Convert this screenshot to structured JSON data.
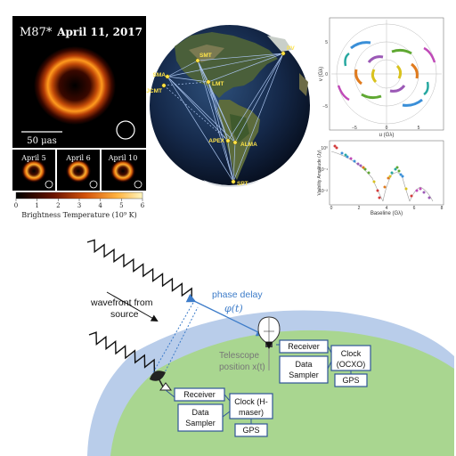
{
  "m87_panel": {
    "title_left": "M87*",
    "title_right": "April 11, 2017",
    "scale_label": "50 μas",
    "thumbnails": [
      {
        "label": "April 5"
      },
      {
        "label": "April 6"
      },
      {
        "label": "April 10"
      }
    ],
    "colorbar": {
      "ticks": [
        "0",
        "1",
        "2",
        "3",
        "4",
        "5",
        "6"
      ],
      "label": "Brightness Temperature (10⁹ K)"
    }
  },
  "globe": {
    "stations": [
      {
        "name": "SMT"
      },
      {
        "name": "PV"
      },
      {
        "name": "SMA"
      },
      {
        "name": "JCMT"
      },
      {
        "name": "LMT"
      },
      {
        "name": "APEX"
      },
      {
        "name": "ALMA"
      },
      {
        "name": "SPT"
      }
    ]
  },
  "uv_plot": {
    "xlabel": "u (Gλ)",
    "ylabel": "v (Gλ)",
    "xticks": [
      "5",
      "0",
      "−5"
    ],
    "yticks": [
      "5",
      "0",
      "−5"
    ]
  },
  "vis_plot": {
    "xlabel": "Baseline (Gλ)",
    "ylabel": "Visibility Amplitude (Jy)",
    "xticks": [
      "0",
      "2",
      "4",
      "6",
      "8"
    ],
    "yticks": [
      "10⁰",
      "10⁻¹",
      "10⁻²"
    ]
  },
  "diagram": {
    "wavefront_label_line1": "wavefront from",
    "wavefront_label_line2": "source",
    "phase_delay_label": "phase delay",
    "phase_delay_symbol": "φ(t)",
    "telescope_position_line1": "Telescope",
    "telescope_position_line2": "position x(t)",
    "right_station": {
      "receiver": "Receiver",
      "sampler_line1": "Data",
      "sampler_line2": "Sampler",
      "clock_line1": "Clock",
      "clock_line2": "(OCXO)",
      "gps": "GPS"
    },
    "left_station": {
      "receiver": "Receiver",
      "sampler_line1": "Data",
      "sampler_line2": "Sampler",
      "clock_line1": "Clock (H-",
      "clock_line2": "maser)",
      "gps": "GPS"
    },
    "colors": {
      "atmosphere": "#b9cdea",
      "ground": "#a9d690",
      "box_border": "#2f5597",
      "arrow": "#3d7cc9"
    }
  }
}
